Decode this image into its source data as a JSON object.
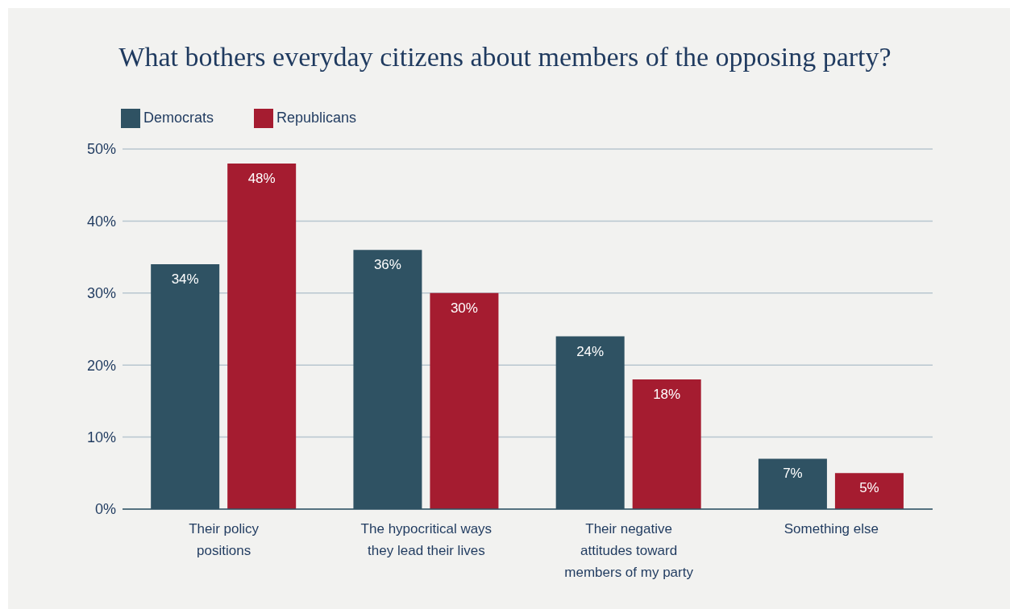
{
  "chart_data": {
    "type": "bar",
    "title": "What bothers everyday citizens about members of the opposing party?",
    "categories": [
      "Their policy positions",
      "The hypocritical ways they lead their lives",
      "Their negative attitudes toward members of my party",
      "Something else"
    ],
    "series": [
      {
        "name": "Democrats",
        "color": "#2f5263",
        "values": [
          34,
          36,
          24,
          7
        ],
        "value_labels": [
          "34%",
          "36%",
          "24%",
          "7%"
        ]
      },
      {
        "name": "Republicans",
        "color": "#a51c30",
        "values": [
          48,
          30,
          18,
          5
        ],
        "value_labels": [
          "48%",
          "30%",
          "18%",
          "5%"
        ]
      }
    ],
    "ylim": [
      0,
      50
    ],
    "yticks": [
      {
        "value": 0,
        "label": "0%"
      },
      {
        "value": 10,
        "label": "10%"
      },
      {
        "value": 20,
        "label": "20%"
      },
      {
        "value": 30,
        "label": "30%"
      },
      {
        "value": 40,
        "label": "40%"
      },
      {
        "value": 50,
        "label": "50%"
      }
    ],
    "grid": "y",
    "legend": "top left"
  }
}
